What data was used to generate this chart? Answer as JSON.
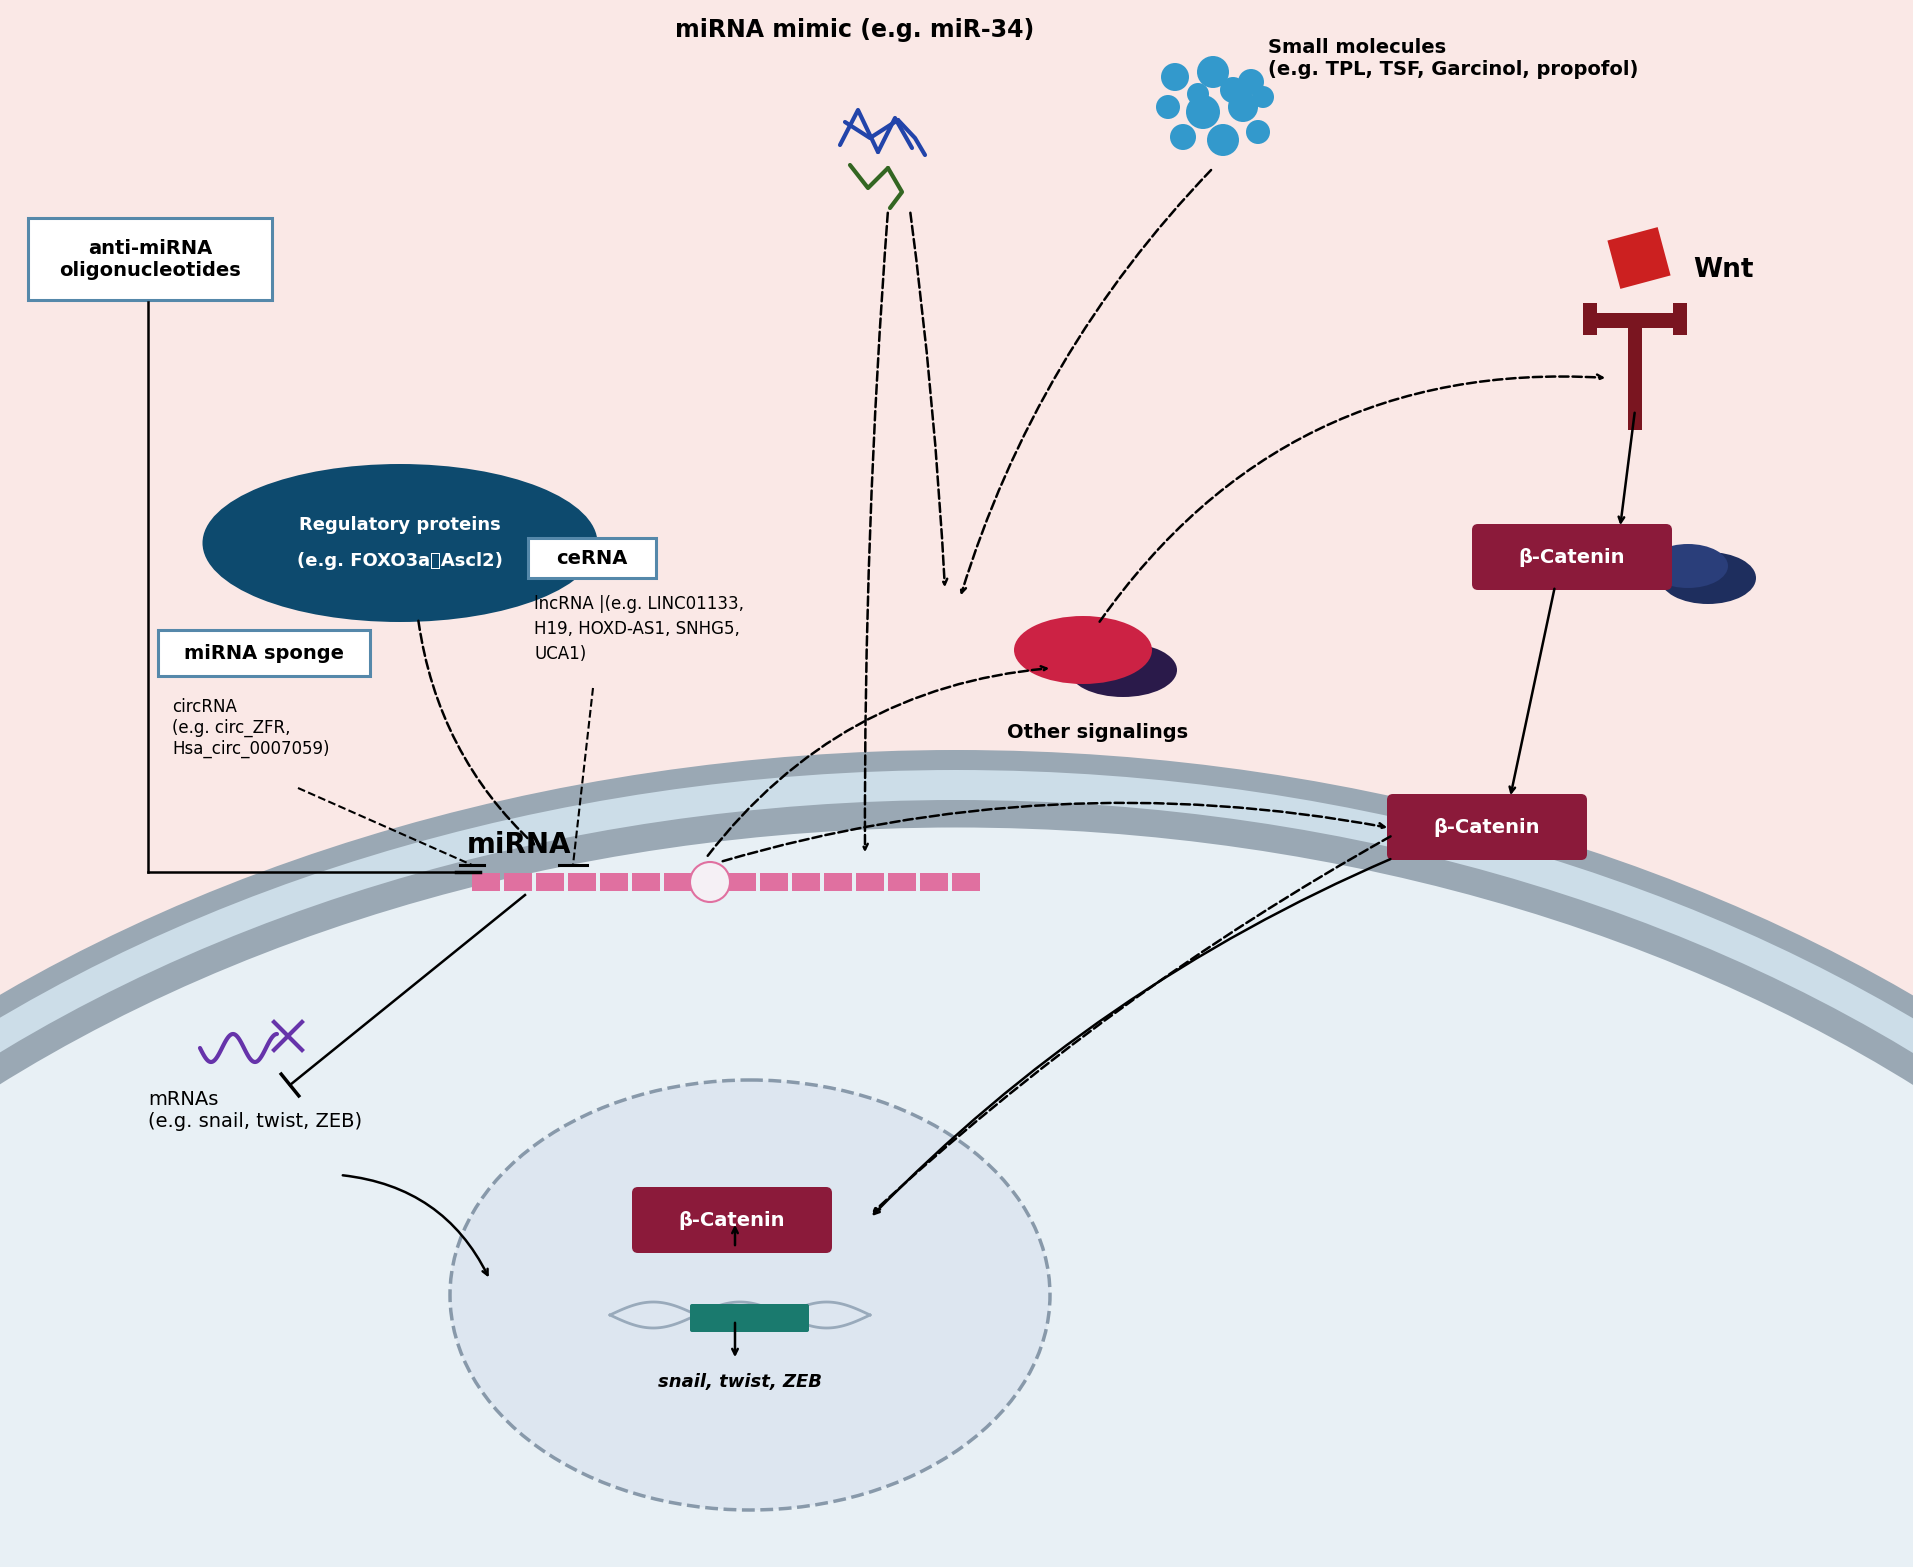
{
  "bg_outer": "#fae8e6",
  "bg_cell_inner": "#e8f0f5",
  "bg_membrane_blue": "#ccdde8",
  "membrane_gray": "#9aa8b4",
  "mirna_mimic_label": "miRNA mimic (e.g. miR-34)",
  "small_molecules_text": "Small molecules\n(e.g. TPL, TSF, Garcinol, propofol)",
  "anti_mirna_text": "anti-miRNA\noligonucleotides",
  "wnt_text": "Wnt",
  "reg_proteins_line1": "Regulatory proteins",
  "reg_proteins_line2": "(e.g. FOXO3a、Ascl2)",
  "mirna_sponge_text": "miRNA sponge",
  "circrna_text": "circRNA\n(e.g. circ_ZFR,\nHsa_circ_0007059)",
  "cerna_label": "ceRNA",
  "lncrna_text": "lncRNA |(e.g. LINC01133,\nH19, HOXD-AS1, SNHG5,\nUCA1)",
  "mirna_label": "miRNA",
  "mrna_text": "mRNAs\n(e.g. snail, twist, ZEB)",
  "other_sig_text": "Other signalings",
  "beta_catenin_color": "#8b1a3a",
  "dark_navy": "#1a3060",
  "teal_color": "#1a7a6e",
  "wnt_receptor_dark": "#7a1520",
  "wnt_ligand_red": "#cc2020",
  "reg_protein_bg": "#0d4a6e",
  "box_border_color": "#5588aa",
  "purple_mrna": "#6633aa",
  "snail_italic": "snail, twist, ZEB",
  "other_sig_red": "#cc2244",
  "other_sig_purple": "#2a1a4a",
  "dot_blue": "#3399cc",
  "dna_strand_color": "#99aabb",
  "mirna_pink": "#e070a0"
}
